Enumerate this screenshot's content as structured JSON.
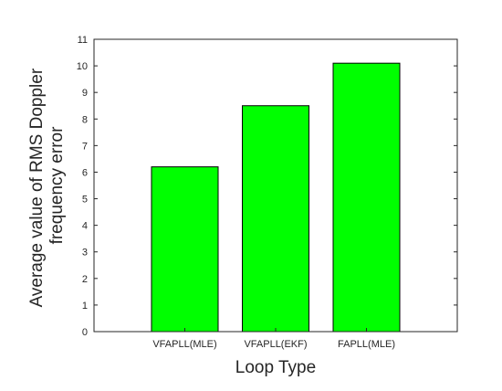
{
  "chart_data": {
    "type": "bar",
    "categories": [
      "VFAPLL(MLE)",
      "VFAPLL(EKF)",
      "FAPLL(MLE)"
    ],
    "values": [
      6.2,
      8.5,
      10.1
    ],
    "title": "",
    "xlabel": "Loop Type",
    "ylabel_lines": [
      "Average value of RMS Doppler",
      "frequency error"
    ],
    "ylim": [
      0,
      11
    ],
    "yticks": [
      0,
      1,
      2,
      3,
      4,
      5,
      6,
      7,
      8,
      9,
      10,
      11
    ],
    "xlim": [
      0,
      4
    ],
    "bar_color": "#00ff00",
    "bar_edge_color": "#000000",
    "grid": false,
    "legend": "none"
  }
}
